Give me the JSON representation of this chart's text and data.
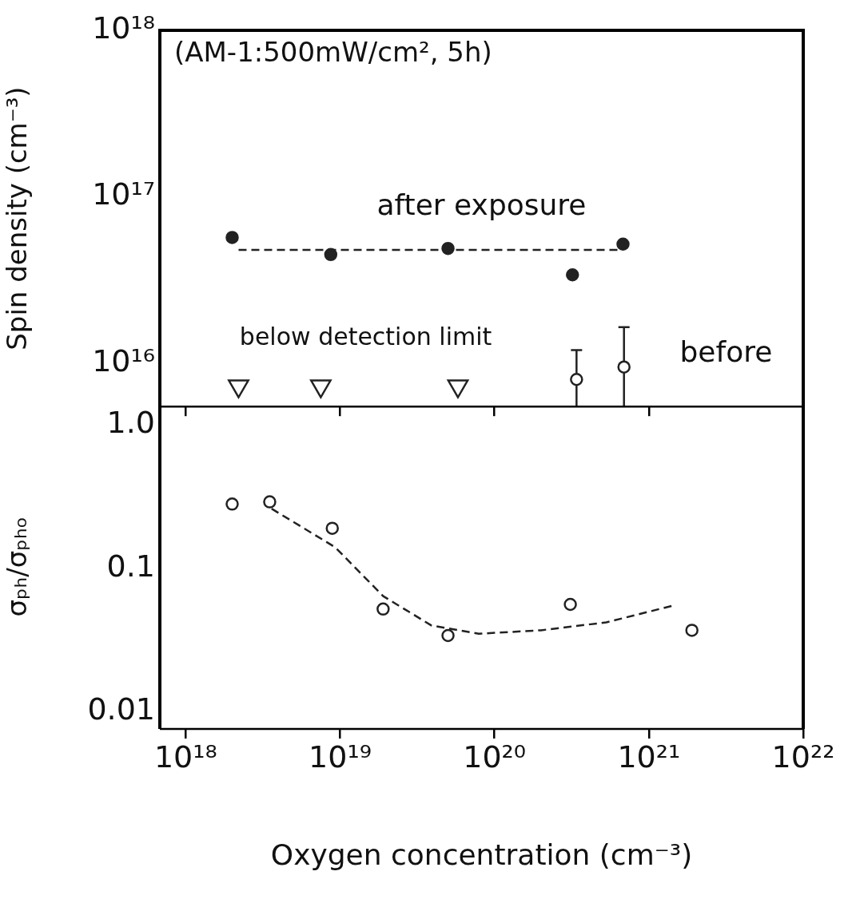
{
  "chart_data": [
    {
      "type": "scatter",
      "title": "(AM-1:500mW/cm², 5h)",
      "ylabel": "Spin density (cm⁻³)",
      "log": "xy",
      "grid": false,
      "tick_labels": "y",
      "xlim": [
        6.8e+17,
        1e+22
      ],
      "xticks": [
        {
          "value": 1e+18,
          "label": null
        },
        {
          "value": 1e+19,
          "label": null
        },
        {
          "value": 1e+20,
          "label": null
        },
        {
          "value": 1e+21,
          "label": null
        }
      ],
      "ylim": [
        5500000000000000.0,
        1e+18
      ],
      "yticks": [
        {
          "value": 1e+16,
          "label": "10¹⁶"
        },
        {
          "value": 1e+17,
          "label": "10¹⁷"
        },
        {
          "value": 1e+18,
          "label": "10¹⁸"
        }
      ],
      "series": [
        {
          "type": "scatter",
          "marker": "circle",
          "color": "#222222",
          "x": [
            2e+18,
            8.7e+18,
            5e+19,
            3.2e+20,
            6.8e+20
          ],
          "values": [
            5.7e+16,
            4.5e+16,
            4.9e+16,
            3.4e+16,
            5.2e+16
          ]
        },
        {
          "type": "line",
          "line_style": "dashed",
          "marker": "none",
          "color": "#222222",
          "x": [
            2.2e+18,
            6.6e+20
          ],
          "values": [
            4.8e+16,
            4.8e+16
          ]
        },
        {
          "type": "scatter",
          "marker": "circle",
          "color": "#222222",
          "x": [
            3.4e+20,
            6.9e+20
          ],
          "values": [
            8000000000000000.0,
            9500000000000000.0
          ],
          "errors": [
            [
              5500000000000000.0,
              1.2e+16
            ],
            [
              5500000000000000.0,
              1.65e+16
            ]
          ]
        },
        {
          "type": "scatter",
          "marker": "triangle",
          "color": "#222222",
          "x": [
            2.2e+18,
            7.5e+18,
            5.8e+19
          ],
          "values": [
            7300000000000000.0,
            7300000000000000.0,
            7300000000000000.0
          ]
        }
      ],
      "annotations": [
        "after exposure",
        "below detection limit",
        "before"
      ]
    },
    {
      "type": "scatter",
      "ylabel": "σₚₕ/σₚₕₒ",
      "xlabel": "Oxygen concentration (cm⁻³)",
      "log": "xy",
      "grid": false,
      "xlim": [
        6.8e+17,
        1e+22
      ],
      "xticks": [
        {
          "value": 1e+18,
          "label": "10¹⁸"
        },
        {
          "value": 1e+19,
          "label": "10¹⁹"
        },
        {
          "value": 1e+20,
          "label": "10²⁰"
        },
        {
          "value": 1e+21,
          "label": "10²¹"
        },
        {
          "value": 1e+22,
          "label": "10²²"
        }
      ],
      "ylim": [
        0.0076,
        1.38
      ],
      "yticks": [
        {
          "value": 0.01,
          "label": "0.01"
        },
        {
          "value": 0.1,
          "label": "0.1"
        },
        {
          "value": 1,
          "label": "1.0"
        }
      ],
      "series": [
        {
          "type": "scatter",
          "marker": "circle",
          "color": "#222222",
          "x": [
            2e+18,
            3.5e+18,
            8.9e+18,
            1.9e+19,
            5e+19,
            3.1e+20,
            1.9e+21
          ],
          "values": [
            0.28,
            0.29,
            0.19,
            0.052,
            0.034,
            0.056,
            0.037
          ]
        },
        {
          "type": "line",
          "line_style": "dashed",
          "marker": "none",
          "color": "#222222",
          "x": [
            3.6e+18,
            9.3e+18,
            1.9e+19,
            3.9e+19,
            7.9e+19,
            2e+20,
            5.3e+20,
            1.44e+21
          ],
          "values": [
            0.26,
            0.14,
            0.064,
            0.04,
            0.035,
            0.037,
            0.042,
            0.055
          ]
        }
      ]
    }
  ]
}
